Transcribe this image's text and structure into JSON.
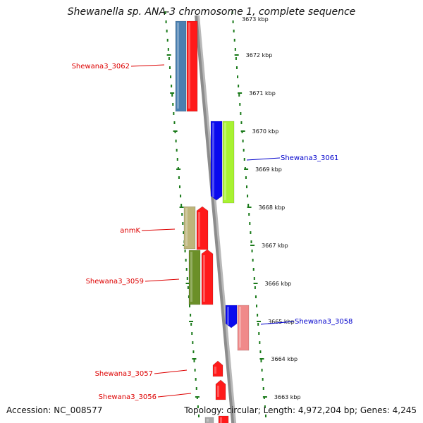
{
  "title": "Shewanella sp. ANA-3 chromosome 1, complete sequence",
  "footer": {
    "accession": "Accession: NC_008577",
    "topology": "Topology: circular; Length: 4,972,204 bp; Genes: 4,245"
  },
  "colors": {
    "dotted_track": "#1a7a1a",
    "backbone": "#8c8c8c",
    "label_red": "#dd0000",
    "label_blue": "#0000cc"
  },
  "ticks": [
    {
      "label": "3672 kbp"
    },
    {
      "label": "3671 kbp"
    },
    {
      "label": "3670 kbp"
    },
    {
      "label": "3669 kbp"
    },
    {
      "label": "3668 kbp"
    },
    {
      "label": "3667 kbp"
    },
    {
      "label": "3666 kbp"
    },
    {
      "label": "3665 kbp"
    },
    {
      "label": "3664 kbp"
    },
    {
      "label": "3663 kbp"
    }
  ],
  "genes": [
    {
      "color": "#4a7fb0"
    },
    {
      "color": "#ff1a1a"
    },
    {
      "color": "#0a0aee"
    },
    {
      "color": "#a8f232"
    },
    {
      "color": "#bdb57a"
    },
    {
      "color": "#ff1a1a"
    },
    {
      "color": "#6b8f28"
    },
    {
      "color": "#ff1a1a"
    },
    {
      "color": "#0a0aee"
    },
    {
      "color": "#f08a8a"
    },
    {
      "color": "#ff1a1a"
    },
    {
      "color": "#ff1a1a"
    },
    {
      "color": "#ff1a1a"
    },
    {
      "color": "#aaaaaa"
    }
  ],
  "labels": [
    {
      "text": "Shewana3_3062",
      "color": "#dd0000"
    },
    {
      "text": "Shewana3_3061",
      "color": "#0000cc"
    },
    {
      "text": "anmK",
      "color": "#dd0000"
    },
    {
      "text": "Shewana3_3059",
      "color": "#dd0000"
    },
    {
      "text": "Shewana3_3058",
      "color": "#0000cc"
    },
    {
      "text": "Shewana3_3057",
      "color": "#dd0000"
    },
    {
      "text": "Shewana3_3056",
      "color": "#dd0000"
    }
  ]
}
